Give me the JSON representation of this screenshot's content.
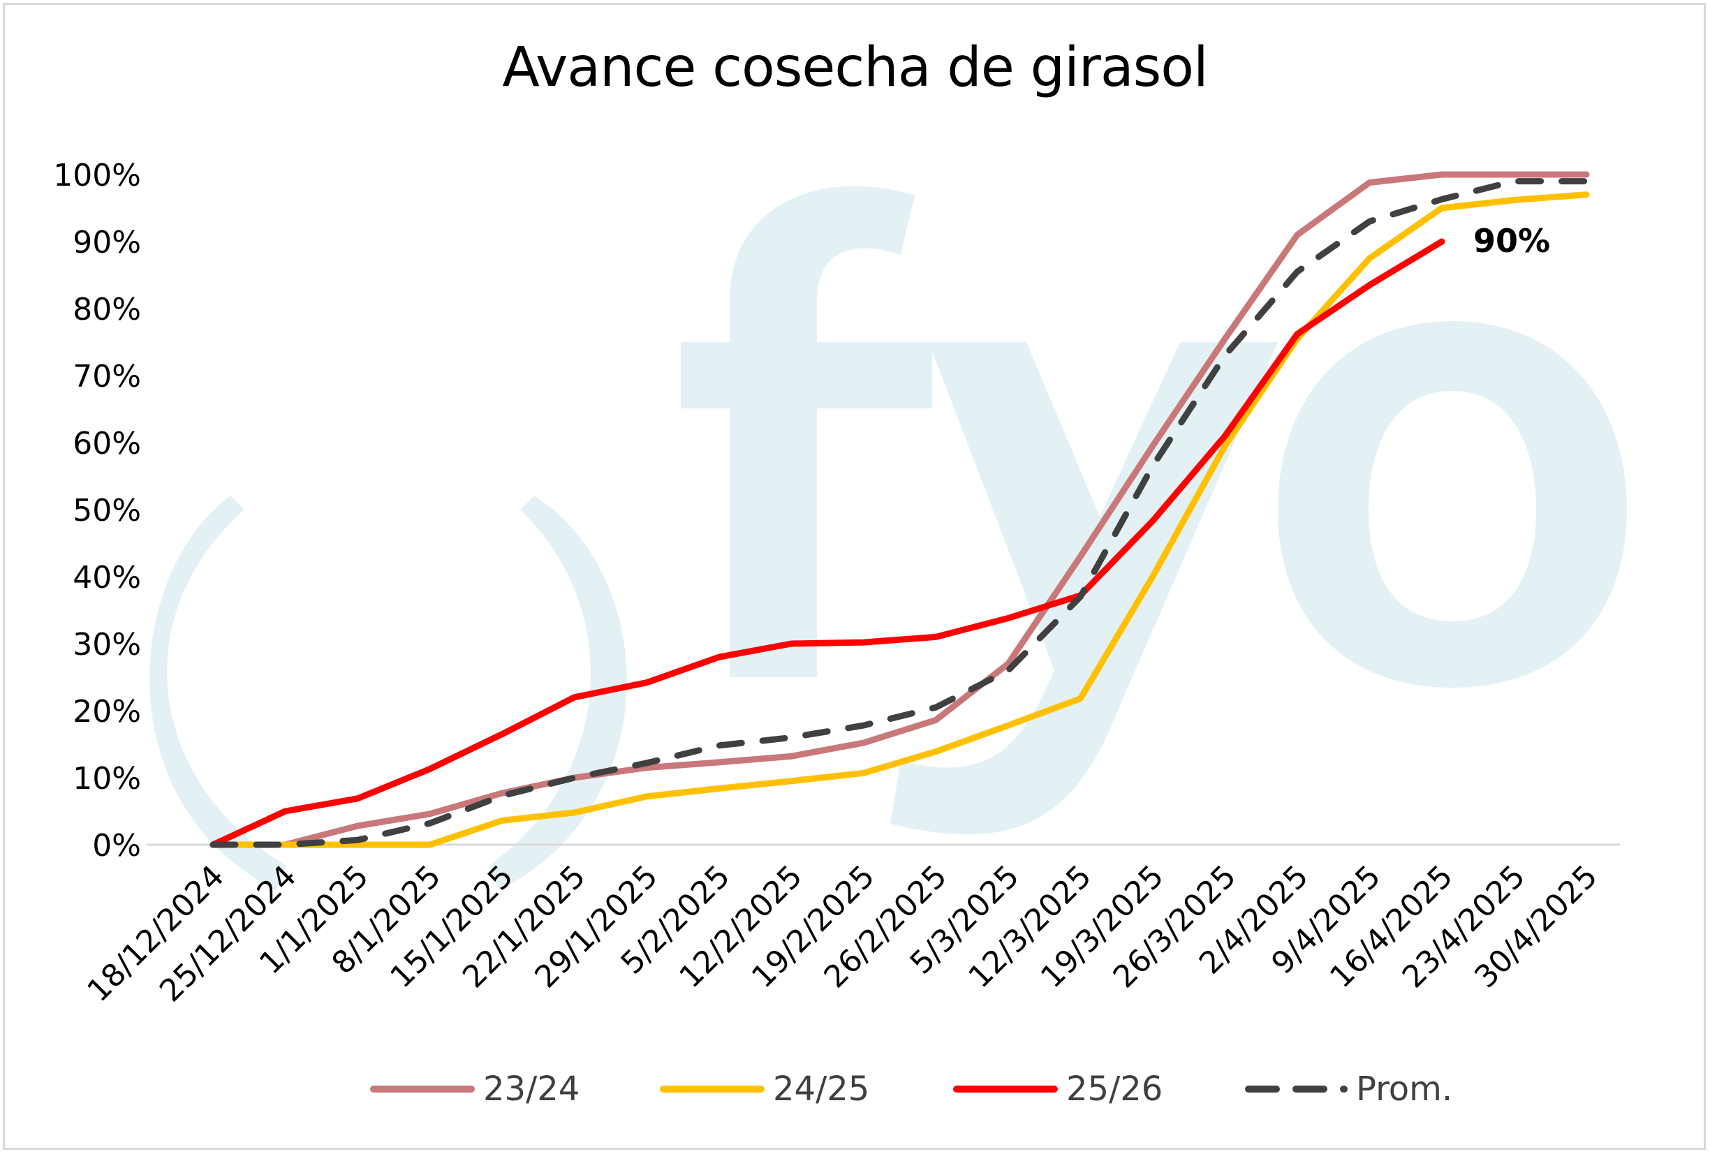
{
  "chart_data": {
    "type": "line",
    "title": "Avance cosecha de girasol",
    "xlabel": "",
    "ylabel": "",
    "ylim": [
      0,
      100
    ],
    "y_ticks": [
      "0%",
      "10%",
      "20%",
      "30%",
      "40%",
      "50%",
      "60%",
      "70%",
      "80%",
      "90%",
      "100%"
    ],
    "x": [
      "18/12/2024",
      "25/12/2024",
      "1/1/2025",
      "8/1/2025",
      "15/1/2025",
      "22/1/2025",
      "29/1/2025",
      "5/2/2025",
      "12/2/2025",
      "19/2/2025",
      "26/2/2025",
      "5/3/2025",
      "12/3/2025",
      "19/3/2025",
      "26/3/2025",
      "2/4/2025",
      "9/4/2025",
      "16/4/2025",
      "23/4/2025",
      "30/4/2025"
    ],
    "series": [
      {
        "name": "23/24",
        "color": "#c9787a",
        "dash": false,
        "values": [
          0,
          0,
          2.8,
          4.6,
          7.7,
          10.0,
          11.5,
          12.3,
          13.2,
          15.2,
          18.6,
          27.0,
          43.0,
          59.5,
          75.5,
          91.0,
          98.8,
          100,
          100,
          100
        ]
      },
      {
        "name": "24/25",
        "color": "#ffc000",
        "dash": false,
        "values": [
          0,
          0,
          0,
          0,
          3.6,
          4.8,
          7.2,
          8.4,
          9.5,
          10.7,
          13.9,
          17.8,
          21.8,
          40.0,
          59.5,
          75.5,
          87.5,
          95.0,
          96.2,
          97.0
        ]
      },
      {
        "name": "25/26",
        "color": "#ff0000",
        "dash": false,
        "values": [
          0,
          5.0,
          6.9,
          11.3,
          16.5,
          22.0,
          24.2,
          28.0,
          30.0,
          30.2,
          31.0,
          33.8,
          37.2,
          48.3,
          61.0,
          76.2,
          83.5,
          90.0,
          null,
          null
        ]
      },
      {
        "name": "Prom.",
        "color": "#404040",
        "dash": true,
        "values": [
          0,
          0,
          0.7,
          3.2,
          7.3,
          10.0,
          12.2,
          14.8,
          16.0,
          17.8,
          20.5,
          26.0,
          37.0,
          56.5,
          73.0,
          85.5,
          93.0,
          96.3,
          99.0,
          99.0
        ]
      }
    ],
    "annotations": [
      {
        "text": "90%",
        "series": "25/26",
        "x": "16/4/2025",
        "y": 90
      }
    ],
    "legend_placement": "bottom",
    "grid": false
  },
  "watermark": "fyo",
  "colors": {
    "axis": "#d9d9d9",
    "watermark": "#e3f1f5",
    "text": "#000000"
  }
}
